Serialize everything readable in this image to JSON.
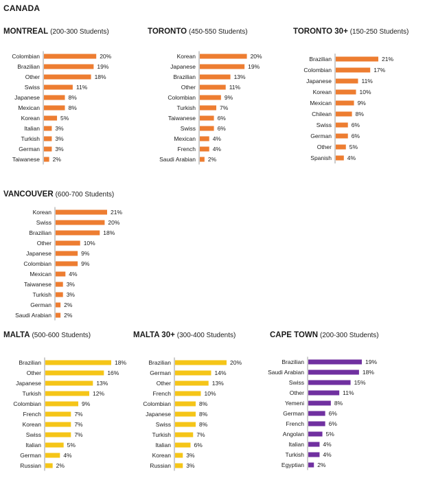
{
  "page": {
    "title": "CANADA"
  },
  "colors": {
    "orange": "#ED7D31",
    "yellow": "#F5C518",
    "purple": "#7030A0",
    "axis": "#9a9a9a"
  },
  "chart_data": [
    {
      "id": "montreal",
      "type": "bar",
      "orientation": "horizontal",
      "title": "MONTREAL",
      "subtitle": "(200-300 Students)",
      "color": "#ED7D31",
      "categories": [
        "Colombian",
        "Brazilian",
        "Other",
        "Swiss",
        "Japanese",
        "Mexican",
        "Korean",
        "Italian",
        "Turkish",
        "German",
        "Taiwanese"
      ],
      "values": [
        20,
        19,
        18,
        11,
        8,
        8,
        5,
        3,
        3,
        3,
        2
      ],
      "labels": [
        "20%",
        "19%",
        "18%",
        "11%",
        "8%",
        "8%",
        "5%",
        "3%",
        "3%",
        "3%",
        "2%"
      ],
      "unit": "%",
      "xlim": [
        0,
        21
      ]
    },
    {
      "id": "toronto",
      "type": "bar",
      "orientation": "horizontal",
      "title": "TORONTO",
      "subtitle": "(450-550 Students)",
      "color": "#ED7D31",
      "categories": [
        "Korean",
        "Japanese",
        "Brazilian",
        "Other",
        "Colombian",
        "Turkish",
        "Taiwanese",
        "Swiss",
        "Mexican",
        "French",
        "Saudi Arabian"
      ],
      "values": [
        20,
        19,
        13,
        11,
        9,
        7,
        6,
        6,
        4,
        4,
        2
      ],
      "labels": [
        "20%",
        "19%",
        "13%",
        "11%",
        "9%",
        "7%",
        "6%",
        "6%",
        "4%",
        "4%",
        "2%"
      ],
      "unit": "%",
      "xlim": [
        0,
        21
      ]
    },
    {
      "id": "toronto30",
      "type": "bar",
      "orientation": "horizontal",
      "title": "TORONTO 30+",
      "subtitle": "(150-250 Students)",
      "color": "#ED7D31",
      "categories": [
        "Brazilian",
        "Colombian",
        "Japanese",
        "Korean",
        "Mexican",
        "Chilean",
        "Swiss",
        "German",
        "Other",
        "Spanish"
      ],
      "values": [
        21,
        17,
        11,
        10,
        9,
        8,
        6,
        6,
        5,
        4
      ],
      "labels": [
        "21%",
        "17%",
        "11%",
        "10%",
        "9%",
        "8%",
        "6%",
        "6%",
        "5%",
        "4%"
      ],
      "unit": "%",
      "xlim": [
        0,
        21
      ]
    },
    {
      "id": "vancouver",
      "type": "bar",
      "orientation": "horizontal",
      "title": "VANCOUVER",
      "subtitle": "(600-700 Students)",
      "color": "#ED7D31",
      "categories": [
        "Korean",
        "Swiss",
        "Brazilian",
        "Other",
        "Japanese",
        "Colombian",
        "Mexican",
        "Taiwanese",
        "Turkish",
        "German",
        "Saudi Arabian"
      ],
      "values": [
        21,
        20,
        18,
        10,
        9,
        9,
        4,
        3,
        3,
        2,
        2
      ],
      "labels": [
        "21%",
        "20%",
        "18%",
        "10%",
        "9%",
        "9%",
        "4%",
        "3%",
        "3%",
        "2%",
        "2%"
      ],
      "unit": "%",
      "xlim": [
        0,
        21
      ]
    },
    {
      "id": "malta",
      "type": "bar",
      "orientation": "horizontal",
      "title": "MALTA",
      "subtitle": "(500-600 Students)",
      "color": "#F5C518",
      "categories": [
        "Brazilian",
        "Other",
        "Japanese",
        "Turkish",
        "Colombian",
        "French",
        "Korean",
        "Swiss",
        "Italian",
        "German",
        "Russian"
      ],
      "values": [
        18,
        16,
        13,
        12,
        9,
        7,
        7,
        7,
        5,
        4,
        2
      ],
      "labels": [
        "18%",
        "16%",
        "13%",
        "12%",
        "9%",
        "7%",
        "7%",
        "7%",
        "5%",
        "4%",
        "2%"
      ],
      "unit": "%",
      "xlim": [
        0,
        18
      ]
    },
    {
      "id": "malta30",
      "type": "bar",
      "orientation": "horizontal",
      "title": "MALTA 30+",
      "subtitle": "(300-400 Students)",
      "color": "#F5C518",
      "categories": [
        "Brazilian",
        "German",
        "Other",
        "French",
        "Colombian",
        "Japanese",
        "Swiss",
        "Turkish",
        "Italian",
        "Korean",
        "Russian"
      ],
      "values": [
        20,
        14,
        13,
        10,
        8,
        8,
        8,
        7,
        6,
        3,
        3
      ],
      "labels": [
        "20%",
        "14%",
        "13%",
        "10%",
        "8%",
        "8%",
        "8%",
        "7%",
        "6%",
        "3%",
        "3%"
      ],
      "unit": "%",
      "xlim": [
        0,
        20
      ]
    },
    {
      "id": "capetown",
      "type": "bar",
      "orientation": "horizontal",
      "title": "CAPE TOWN",
      "subtitle": "(200-300 Students)",
      "color": "#7030A0",
      "categories": [
        "Brazilian",
        "Saudi Arabian",
        "Swiss",
        "Other",
        "Yemeni",
        "German",
        "French",
        "Angolan",
        "Italian",
        "Turkish",
        "Egyptian"
      ],
      "values": [
        19,
        18,
        15,
        11,
        8,
        6,
        6,
        5,
        4,
        4,
        2
      ],
      "labels": [
        "19%",
        "18%",
        "15%",
        "11%",
        "8%",
        "6%",
        "6%",
        "5%",
        "4%",
        "4%",
        "2%"
      ],
      "unit": "%",
      "xlim": [
        0,
        19
      ]
    }
  ]
}
